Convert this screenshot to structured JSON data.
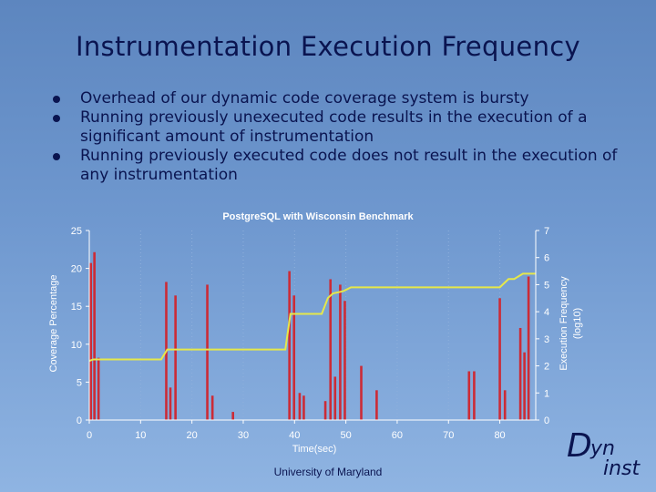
{
  "slide": {
    "title": "Instrumentation Execution Frequency",
    "bullets": [
      "Overhead of our dynamic code coverage system is bursty",
      "Running previously unexecuted code results in the execution of a significant amount of instrumentation",
      "Running previously executed code does not result in the execution of any instrumentation"
    ],
    "footer": "University of Maryland",
    "logo": {
      "letter": "D",
      "rest": "yn",
      "sub": "inst"
    }
  },
  "colors": {
    "bars": "#cc2b36",
    "line": "#e6e84a",
    "text": "#0a1450",
    "chart_text": "#ffffff"
  },
  "chart_data": {
    "type": "bar",
    "title": "PostgreSQL with Wisconsin Benchmark",
    "xlabel": "Time(sec)",
    "ylabel": "Coverage Percentage",
    "y2label_line1": "Execution Frequency",
    "y2label_line2": "(log10)",
    "xlim": [
      0,
      87
    ],
    "ylim": [
      0,
      25
    ],
    "y2lim": [
      0,
      7
    ],
    "xticks": [
      0,
      10,
      20,
      30,
      40,
      50,
      60,
      70,
      80
    ],
    "yticks": [
      0,
      5,
      10,
      15,
      20,
      25
    ],
    "y2ticks": [
      0,
      1,
      2,
      3,
      4,
      5,
      6,
      7
    ],
    "grid": true,
    "series": [
      {
        "kind": "bar",
        "axis": "right",
        "points": [
          {
            "x": 0.3,
            "y": 5.8
          },
          {
            "x": 1.0,
            "y": 6.2
          },
          {
            "x": 1.8,
            "y": 2.3
          },
          {
            "x": 15.0,
            "y": 5.1
          },
          {
            "x": 15.8,
            "y": 1.2
          },
          {
            "x": 16.8,
            "y": 4.6
          },
          {
            "x": 23.0,
            "y": 5.0
          },
          {
            "x": 24.0,
            "y": 0.9
          },
          {
            "x": 28.0,
            "y": 0.3
          },
          {
            "x": 39.0,
            "y": 5.5
          },
          {
            "x": 39.9,
            "y": 4.6
          },
          {
            "x": 41.0,
            "y": 1.0
          },
          {
            "x": 41.8,
            "y": 0.9
          },
          {
            "x": 46.0,
            "y": 0.7
          },
          {
            "x": 47.0,
            "y": 5.2
          },
          {
            "x": 47.9,
            "y": 1.6
          },
          {
            "x": 48.9,
            "y": 5.0
          },
          {
            "x": 49.8,
            "y": 4.4
          },
          {
            "x": 53.0,
            "y": 2.0
          },
          {
            "x": 56.0,
            "y": 1.1
          },
          {
            "x": 74.0,
            "y": 1.8
          },
          {
            "x": 75.0,
            "y": 1.8
          },
          {
            "x": 80.0,
            "y": 4.5
          },
          {
            "x": 81.0,
            "y": 1.1
          },
          {
            "x": 84.0,
            "y": 3.4
          },
          {
            "x": 84.8,
            "y": 2.5
          },
          {
            "x": 85.6,
            "y": 5.3
          }
        ]
      },
      {
        "kind": "line",
        "axis": "left",
        "points": [
          {
            "x": 0.0,
            "y": 7.8
          },
          {
            "x": 0.8,
            "y": 8.0
          },
          {
            "x": 14.0,
            "y": 8.0
          },
          {
            "x": 15.2,
            "y": 9.3
          },
          {
            "x": 38.2,
            "y": 9.3
          },
          {
            "x": 39.2,
            "y": 14.0
          },
          {
            "x": 45.3,
            "y": 14.0
          },
          {
            "x": 46.5,
            "y": 16.1
          },
          {
            "x": 47.5,
            "y": 16.7
          },
          {
            "x": 49.5,
            "y": 17.0
          },
          {
            "x": 51.0,
            "y": 17.5
          },
          {
            "x": 80.0,
            "y": 17.5
          },
          {
            "x": 81.7,
            "y": 18.6
          },
          {
            "x": 82.8,
            "y": 18.6
          },
          {
            "x": 84.5,
            "y": 19.3
          },
          {
            "x": 87.0,
            "y": 19.3
          }
        ]
      }
    ]
  }
}
